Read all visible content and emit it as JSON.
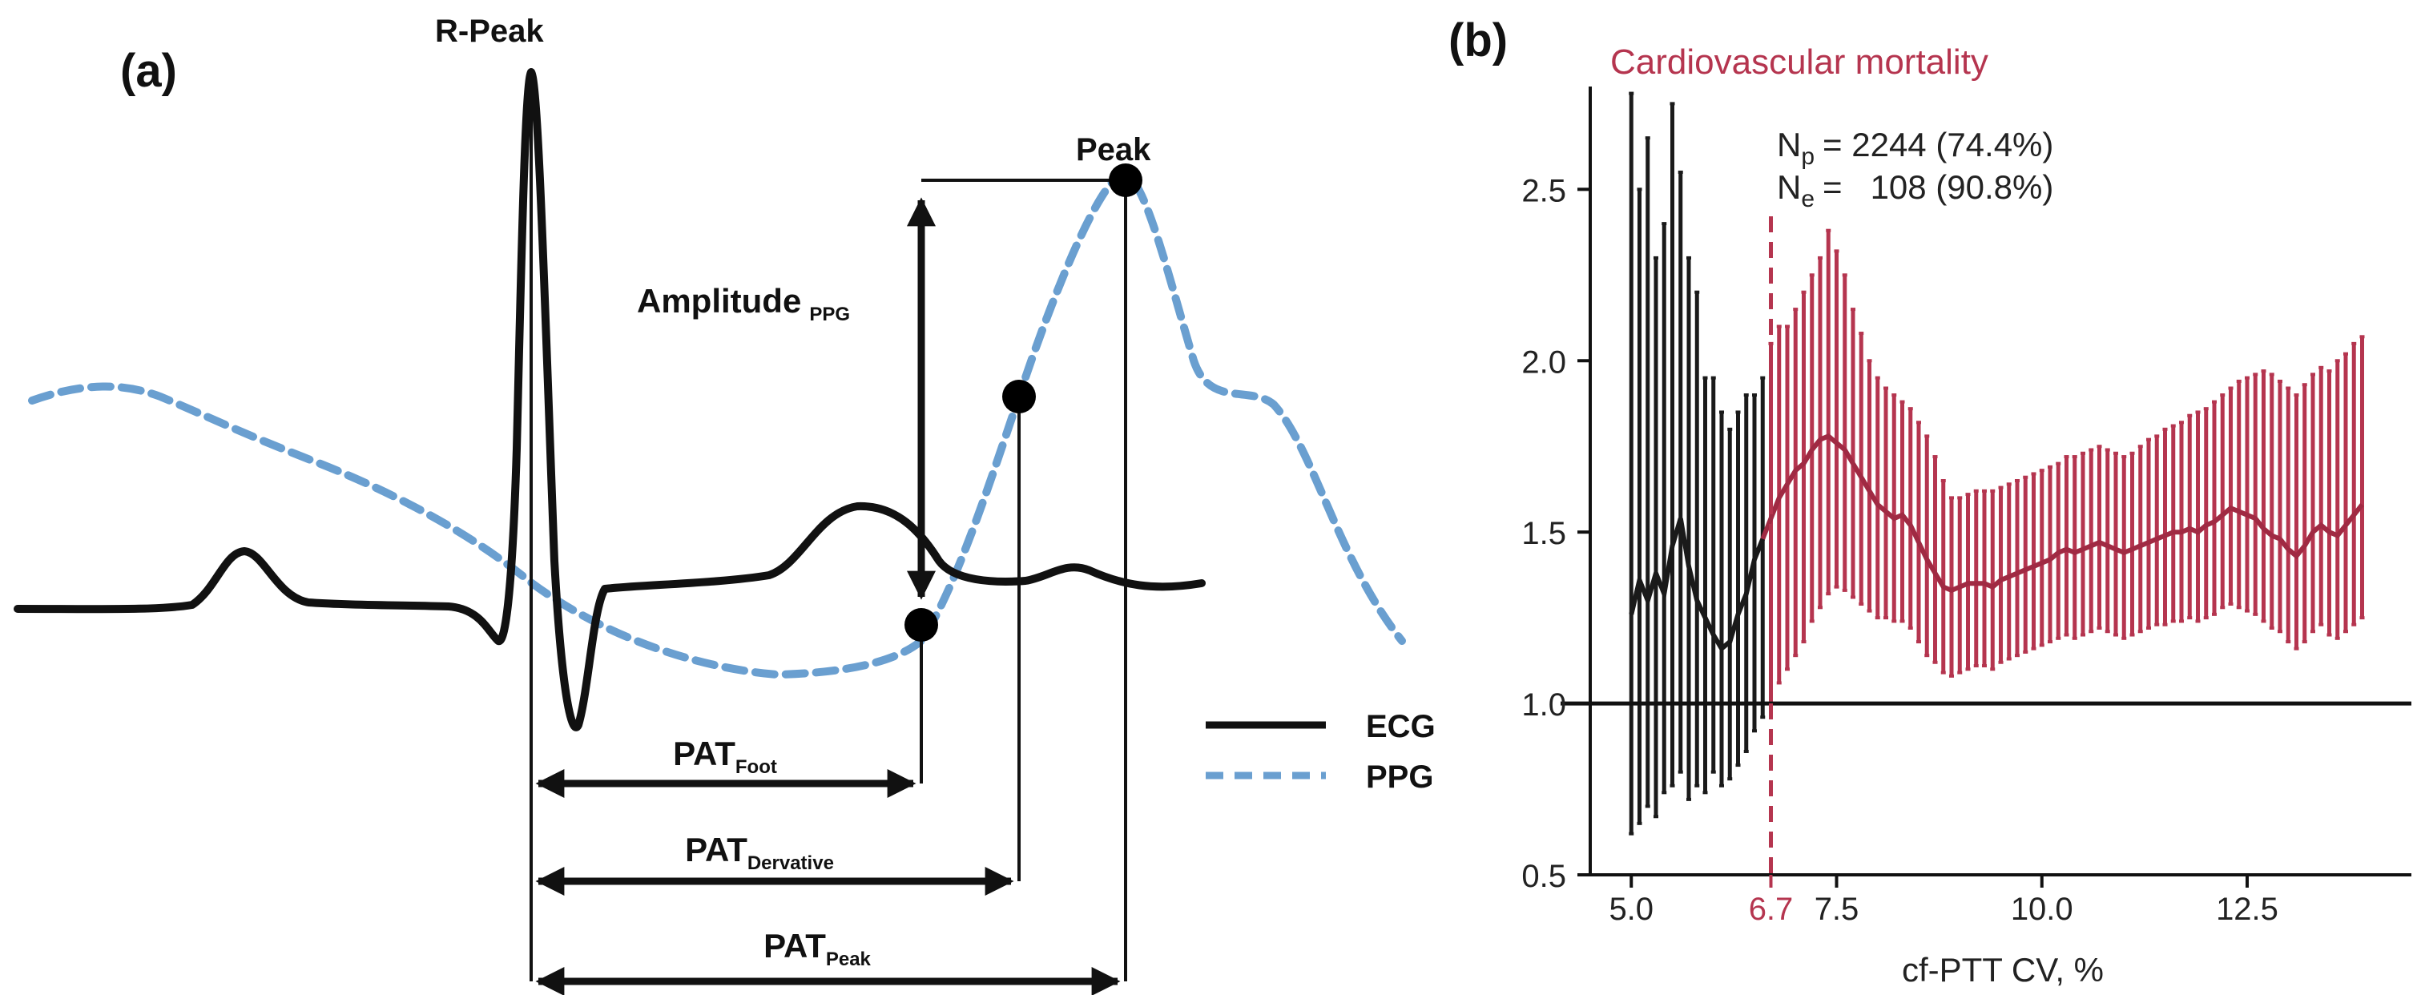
{
  "panel_a": {
    "label": "(a)",
    "r_peak_label": "R-Peak",
    "peak_label": "Peak",
    "amplitude_label": "Amplitude",
    "amplitude_sub": "PPG",
    "intervals": [
      {
        "main": "PAT",
        "sub": "Foot"
      },
      {
        "main": "PAT",
        "sub": "Dervative"
      },
      {
        "main": "PAT",
        "sub": "Peak"
      }
    ],
    "legend": [
      {
        "label": "ECG",
        "color": "#111111",
        "style": "solid"
      },
      {
        "label": "PPG",
        "color": "#6a9fd0",
        "style": "dashed"
      }
    ]
  },
  "panel_b": {
    "label": "(b)"
  },
  "chart_data": {
    "type": "line",
    "title": "Cardiovascular mortality",
    "xlabel": "cf-PTT CV, %",
    "ylabel": "",
    "xlim": [
      4.5,
      14.5
    ],
    "ylim": [
      0.5,
      2.8
    ],
    "xticks": [
      5.0,
      7.5,
      10.0,
      12.5
    ],
    "xtick_labels": [
      "5.0",
      "7.5",
      "10.0",
      "12.5"
    ],
    "yticks": [
      0.5,
      1.0,
      1.5,
      2.0,
      2.5
    ],
    "ytick_labels": [
      "0.5",
      "1.0",
      "1.5",
      "2.0",
      "2.5"
    ],
    "threshold": {
      "x": 6.7,
      "label": "6.7",
      "color": "#b5354f"
    },
    "reference_line": {
      "y": 1.0
    },
    "annotations": {
      "np": {
        "main": "N",
        "sub": "p",
        "value": "= 2244 (74.4%)"
      },
      "ne": {
        "main": "N",
        "sub": "e",
        "value": "=   108 (90.8%)"
      }
    },
    "colors": {
      "below": "#1a1a1a",
      "above": "#b5354f"
    },
    "x": [
      5.0,
      5.1,
      5.2,
      5.3,
      5.4,
      5.5,
      5.6,
      5.7,
      5.8,
      5.9,
      6.0,
      6.1,
      6.2,
      6.3,
      6.4,
      6.5,
      6.6,
      6.7,
      6.8,
      6.9,
      7.0,
      7.1,
      7.2,
      7.3,
      7.4,
      7.5,
      7.6,
      7.7,
      7.8,
      7.9,
      8.0,
      8.1,
      8.2,
      8.3,
      8.4,
      8.5,
      8.6,
      8.7,
      8.8,
      8.9,
      9.0,
      9.1,
      9.2,
      9.3,
      9.4,
      9.5,
      9.6,
      9.7,
      9.8,
      9.9,
      10.0,
      10.1,
      10.2,
      10.3,
      10.4,
      10.5,
      10.6,
      10.7,
      10.8,
      10.9,
      11.0,
      11.1,
      11.2,
      11.3,
      11.4,
      11.5,
      11.6,
      11.7,
      11.8,
      11.9,
      12.0,
      12.1,
      12.2,
      12.3,
      12.4,
      12.5,
      12.6,
      12.7,
      12.8,
      12.9,
      13.0,
      13.1,
      13.2,
      13.3,
      13.4,
      13.5,
      13.6,
      13.7,
      13.8,
      13.9
    ],
    "estimate": [
      1.26,
      1.36,
      1.3,
      1.38,
      1.32,
      1.46,
      1.54,
      1.4,
      1.3,
      1.25,
      1.2,
      1.16,
      1.18,
      1.26,
      1.32,
      1.42,
      1.48,
      1.54,
      1.6,
      1.64,
      1.68,
      1.7,
      1.74,
      1.77,
      1.78,
      1.76,
      1.74,
      1.7,
      1.66,
      1.62,
      1.58,
      1.56,
      1.54,
      1.55,
      1.52,
      1.47,
      1.42,
      1.38,
      1.34,
      1.33,
      1.34,
      1.35,
      1.35,
      1.35,
      1.34,
      1.36,
      1.37,
      1.38,
      1.39,
      1.4,
      1.41,
      1.42,
      1.44,
      1.45,
      1.44,
      1.45,
      1.46,
      1.47,
      1.46,
      1.45,
      1.44,
      1.45,
      1.46,
      1.47,
      1.48,
      1.49,
      1.5,
      1.5,
      1.51,
      1.5,
      1.52,
      1.53,
      1.55,
      1.57,
      1.56,
      1.55,
      1.54,
      1.51,
      1.49,
      1.48,
      1.45,
      1.43,
      1.46,
      1.5,
      1.52,
      1.5,
      1.49,
      1.52,
      1.55,
      1.58
    ],
    "lower": [
      0.62,
      0.65,
      0.7,
      0.67,
      0.74,
      0.76,
      0.8,
      0.72,
      0.76,
      0.74,
      0.8,
      0.76,
      0.78,
      0.82,
      0.86,
      0.92,
      0.96,
      1.0,
      1.06,
      1.1,
      1.14,
      1.18,
      1.24,
      1.28,
      1.32,
      1.34,
      1.33,
      1.31,
      1.29,
      1.27,
      1.25,
      1.25,
      1.24,
      1.24,
      1.22,
      1.18,
      1.14,
      1.12,
      1.09,
      1.08,
      1.09,
      1.1,
      1.11,
      1.11,
      1.1,
      1.12,
      1.13,
      1.14,
      1.15,
      1.16,
      1.17,
      1.18,
      1.19,
      1.2,
      1.19,
      1.2,
      1.21,
      1.22,
      1.21,
      1.2,
      1.19,
      1.2,
      1.21,
      1.22,
      1.23,
      1.23,
      1.24,
      1.24,
      1.25,
      1.24,
      1.25,
      1.26,
      1.28,
      1.29,
      1.28,
      1.27,
      1.26,
      1.24,
      1.22,
      1.21,
      1.18,
      1.16,
      1.18,
      1.21,
      1.23,
      1.2,
      1.19,
      1.21,
      1.23,
      1.25
    ],
    "upper": [
      2.78,
      2.5,
      2.65,
      2.3,
      2.4,
      2.75,
      2.55,
      2.3,
      2.2,
      1.95,
      1.95,
      1.85,
      1.8,
      1.85,
      1.9,
      1.9,
      1.95,
      2.05,
      2.1,
      2.1,
      2.15,
      2.2,
      2.25,
      2.3,
      2.38,
      2.32,
      2.25,
      2.15,
      2.08,
      2.0,
      1.95,
      1.92,
      1.9,
      1.88,
      1.86,
      1.82,
      1.78,
      1.72,
      1.65,
      1.6,
      1.6,
      1.61,
      1.62,
      1.62,
      1.62,
      1.63,
      1.64,
      1.65,
      1.66,
      1.67,
      1.68,
      1.69,
      1.7,
      1.72,
      1.72,
      1.73,
      1.74,
      1.75,
      1.74,
      1.73,
      1.72,
      1.73,
      1.75,
      1.77,
      1.78,
      1.8,
      1.81,
      1.82,
      1.84,
      1.85,
      1.86,
      1.88,
      1.9,
      1.92,
      1.94,
      1.95,
      1.96,
      1.97,
      1.96,
      1.94,
      1.92,
      1.9,
      1.93,
      1.96,
      1.98,
      1.97,
      2.0,
      2.02,
      2.05,
      2.07
    ]
  }
}
